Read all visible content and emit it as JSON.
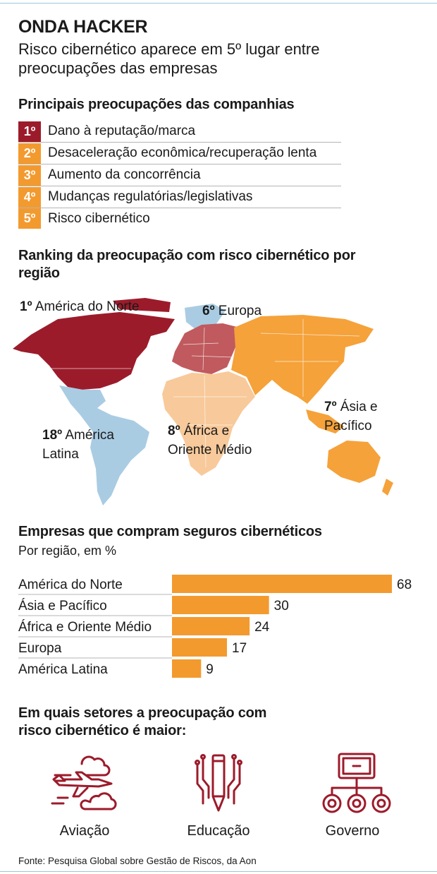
{
  "header": {
    "title": "ONDA HACKER",
    "subtitle": "Risco cibernético aparece em 5º lugar entre preocupações das empresas"
  },
  "ranking": {
    "heading": "Principais preocupações das companhias",
    "items": [
      {
        "rank": "1º",
        "label": "Dano à reputação/marca",
        "color": "#9c1b2b"
      },
      {
        "rank": "2º",
        "label": "Desaceleração econômica/recuperação lenta",
        "color": "#f39a2e"
      },
      {
        "rank": "3º",
        "label": "Aumento da concorrência",
        "color": "#f39a2e"
      },
      {
        "rank": "4º",
        "label": "Mudanças regulatórias/legislativas",
        "color": "#f39a2e"
      },
      {
        "rank": "5º",
        "label": "Risco cibernético",
        "color": "#f39a2e"
      }
    ]
  },
  "map": {
    "heading": "Ranking da preocupação com risco cibernético por região",
    "regions": [
      {
        "rank": "1º",
        "name": "América do Norte",
        "color": "#9c1b2b"
      },
      {
        "rank": "6º",
        "name": "Europa",
        "color": "#c05a5e"
      },
      {
        "rank": "7º",
        "name": "Ásia e Pacífico",
        "color": "#f5a23a"
      },
      {
        "rank": "8º",
        "name": "África e Oriente Médio",
        "color": "#f8c99a"
      },
      {
        "rank": "18º",
        "name": "América Latina",
        "color": "#a9cce3"
      }
    ]
  },
  "chart_data": {
    "type": "bar",
    "title": "Empresas que compram seguros cibernéticos",
    "subtitle": "Por região, em %",
    "categories": [
      "América do Norte",
      "Ásia e Pacífico",
      "África e Oriente Médio",
      "Europa",
      "América Latina"
    ],
    "values": [
      68,
      30,
      24,
      17,
      9
    ],
    "xlim": [
      0,
      68
    ],
    "color": "#f39a2e",
    "orientation": "horizontal",
    "grid": false
  },
  "sectors": {
    "heading": "Em quais setores a preocupação com risco cibernético é maior:",
    "items": [
      {
        "label": "Aviação",
        "icon": "airplane-clouds-icon"
      },
      {
        "label": "Educação",
        "icon": "pencil-circuit-icon"
      },
      {
        "label": "Governo",
        "icon": "computer-network-icon"
      }
    ],
    "icon_color": "#9c1b2b"
  },
  "source": "Fonte: Pesquisa Global sobre Gestão de Riscos, da Aon"
}
